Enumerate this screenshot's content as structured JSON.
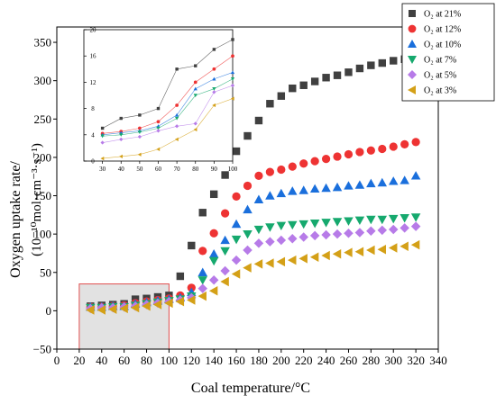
{
  "chart_data": [
    {
      "type": "scatter",
      "title": "",
      "xlabel": "Coal temperature/°C",
      "ylabel": "Oxygen uptake rate/",
      "ylabel_unit": "(10⁻¹⁰mol·cm⁻³·s⁻¹)",
      "xlim": [
        0,
        340
      ],
      "ylim": [
        -50,
        370
      ],
      "xticks": [
        0,
        20,
        40,
        60,
        80,
        100,
        120,
        140,
        160,
        180,
        200,
        220,
        240,
        260,
        280,
        300,
        320,
        340
      ],
      "xtick_labels": [
        "0",
        "20",
        "40",
        "60",
        "80",
        "100",
        "120",
        "140",
        "160",
        "180",
        "200",
        "220",
        "240",
        "260",
        "280",
        "300",
        "320",
        "340"
      ],
      "yticks": [
        -50,
        0,
        50,
        100,
        150,
        200,
        250,
        300,
        350
      ],
      "ytick_labels": [
        "−50",
        "0",
        "50",
        "100",
        "150",
        "200",
        "250",
        "300",
        "350"
      ],
      "legend_position": "top-right",
      "highlight_region": {
        "x": [
          20,
          100
        ],
        "y": [
          -50,
          35
        ]
      },
      "x": [
        30,
        40,
        50,
        60,
        70,
        80,
        90,
        100,
        110,
        120,
        130,
        140,
        150,
        160,
        170,
        180,
        190,
        200,
        210,
        220,
        230,
        240,
        250,
        260,
        270,
        280,
        290,
        300,
        310,
        320
      ],
      "series": [
        {
          "name": "O₂ at 21%",
          "marker": "square",
          "color": "#404040",
          "values": [
            6,
            7,
            8,
            9,
            15,
            16,
            18,
            20,
            45,
            85,
            128,
            152,
            177,
            208,
            228,
            248,
            270,
            280,
            290,
            294,
            299,
            304,
            307,
            311,
            316,
            320,
            323,
            326,
            328,
            335
          ]
        },
        {
          "name": "O₂ at 12%",
          "marker": "circle",
          "color": "#ee3333",
          "values": [
            5,
            5,
            6,
            7,
            10,
            12,
            14,
            16,
            20,
            30,
            78,
            101,
            127,
            149,
            163,
            176,
            181,
            184,
            188,
            192,
            195,
            198,
            201,
            204,
            207,
            209,
            211,
            214,
            217,
            220
          ]
        },
        {
          "name": "O₂ at 10%",
          "marker": "triangle-up",
          "color": "#1a6fdc",
          "values": [
            5,
            5,
            6,
            6,
            9,
            11,
            13,
            15,
            17,
            24,
            50,
            74,
            92,
            113,
            132,
            145,
            150,
            153,
            156,
            157,
            159,
            160,
            161,
            163,
            164,
            166,
            167,
            169,
            170,
            176
          ]
        },
        {
          "name": "O₂ at 7%",
          "marker": "triangle-down",
          "color": "#16a96e",
          "values": [
            4,
            4,
            5,
            5,
            7,
            9,
            11,
            13,
            15,
            19,
            40,
            65,
            78,
            93,
            100,
            106,
            109,
            111,
            112,
            113,
            114,
            115,
            116,
            117,
            118,
            119,
            119,
            120,
            121,
            122
          ]
        },
        {
          "name": "O₂ at 5%",
          "marker": "diamond",
          "color": "#b77be8",
          "values": [
            3,
            4,
            4,
            5,
            6,
            8,
            10,
            12,
            14,
            17,
            29,
            40,
            52,
            66,
            79,
            88,
            90,
            92,
            94,
            96,
            98,
            99,
            100,
            101,
            102,
            104,
            105,
            106,
            108,
            110
          ]
        },
        {
          "name": "O₂ at 3%",
          "marker": "triangle-left",
          "color": "#d4a017",
          "values": [
            1,
            1,
            2,
            3,
            4,
            6,
            8,
            10,
            12,
            14,
            19,
            26,
            38,
            48,
            56,
            61,
            62,
            64,
            66,
            68,
            70,
            72,
            74,
            76,
            77,
            79,
            80,
            82,
            84,
            86
          ]
        }
      ]
    },
    {
      "type": "scatter",
      "title": "",
      "xlabel": "",
      "ylabel": "",
      "xlim": [
        20,
        100
      ],
      "ylim": [
        0,
        20
      ],
      "xticks": [
        30,
        40,
        50,
        60,
        70,
        80,
        90,
        100
      ],
      "xtick_labels": [
        "30",
        "40",
        "50",
        "60",
        "70",
        "80",
        "90",
        "100"
      ],
      "yticks": [
        0,
        4,
        8,
        12,
        16,
        20
      ],
      "ytick_labels": [
        "0",
        "4",
        "8",
        "12",
        "16",
        "20"
      ],
      "x": [
        30,
        40,
        50,
        60,
        70,
        80,
        90,
        100
      ],
      "series": [
        {
          "name": "O₂ at 21%",
          "marker": "square",
          "color": "#404040",
          "values": [
            5,
            6.5,
            7,
            8,
            14,
            14.5,
            17,
            18.5
          ]
        },
        {
          "name": "O₂ at 12%",
          "marker": "circle",
          "color": "#ee3333",
          "values": [
            4.2,
            4.5,
            5,
            6,
            8.5,
            12,
            14,
            16
          ]
        },
        {
          "name": "O₂ at 10%",
          "marker": "triangle-up",
          "color": "#1a6fdc",
          "values": [
            4,
            4.3,
            4.6,
            5.3,
            7,
            11,
            12.5,
            13.5
          ]
        },
        {
          "name": "O₂ at 7%",
          "marker": "triangle-down",
          "color": "#16a96e",
          "values": [
            3.8,
            4,
            4.4,
            5,
            6.5,
            10,
            11,
            12.5
          ]
        },
        {
          "name": "O₂ at 5%",
          "marker": "diamond",
          "color": "#b77be8",
          "values": [
            2.8,
            3.3,
            3.7,
            4.6,
            5.3,
            5.7,
            10.5,
            11.5
          ]
        },
        {
          "name": "O₂ at 3%",
          "marker": "triangle-left",
          "color": "#d4a017",
          "values": [
            0.4,
            0.7,
            1,
            1.8,
            3.3,
            4.8,
            8.5,
            9.5
          ]
        }
      ]
    }
  ]
}
